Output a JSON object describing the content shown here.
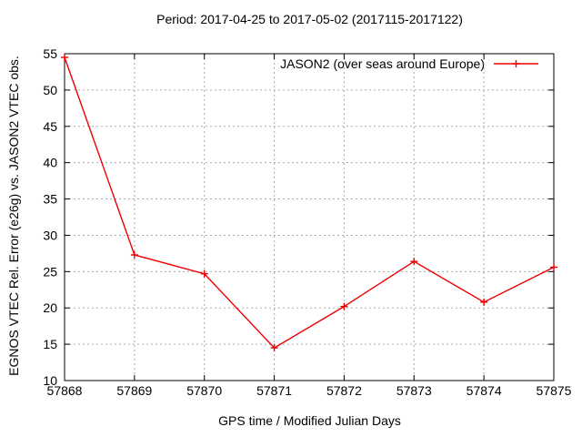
{
  "title": "Period: 2017-04-25 to 2017-05-02 (2017115-2017122)",
  "chart_data": {
    "type": "line",
    "title": "Period: 2017-04-25 to 2017-05-02 (2017115-2017122)",
    "xlabel": "GPS time / Modified Julian Days",
    "ylabel": "EGNOS VTEC Rel. Error (e26g) vs. JASON2 VTEC obs.",
    "x": [
      57868,
      57869,
      57870,
      57871,
      57872,
      57873,
      57874,
      57875
    ],
    "series": [
      {
        "name": "JASON2 (over seas around Europe)",
        "values": [
          54.5,
          27.3,
          24.7,
          14.5,
          20.2,
          26.4,
          20.8,
          25.6
        ],
        "color": "#ee0000",
        "marker": "plus"
      }
    ],
    "xlim": [
      57868,
      57875
    ],
    "ylim": [
      10,
      55
    ],
    "x_ticks": [
      57868,
      57869,
      57870,
      57871,
      57872,
      57873,
      57874,
      57875
    ],
    "y_ticks": [
      10,
      15,
      20,
      25,
      30,
      35,
      40,
      45,
      50,
      55
    ],
    "grid": true,
    "grid_style": "dashed",
    "legend_position": "top-right-inside",
    "colors": {
      "line": "#ee0000",
      "grid": "#aaaaaa",
      "border": "#000000",
      "background": "#ffffff",
      "text": "#000000"
    }
  }
}
